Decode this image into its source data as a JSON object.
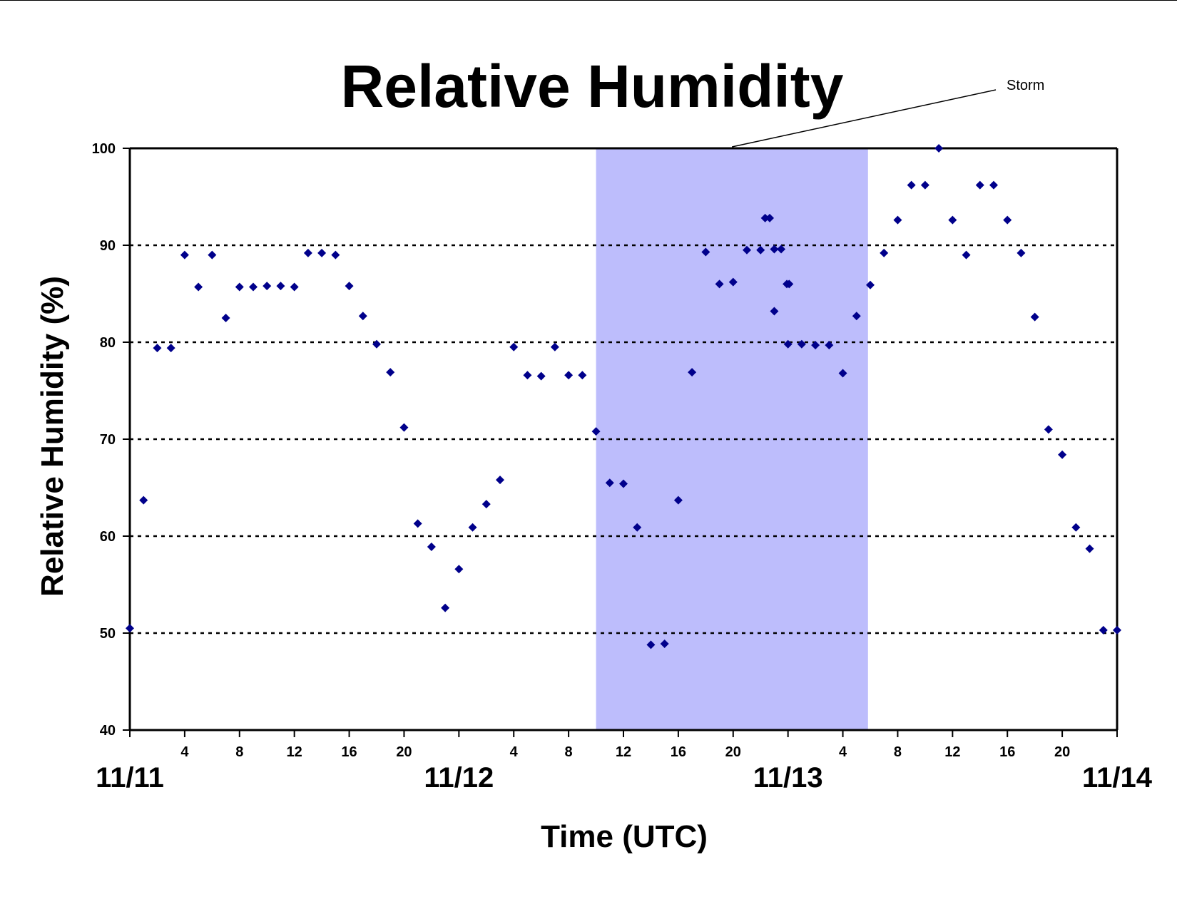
{
  "chart_data": {
    "type": "scatter",
    "title": "Relative Humidity",
    "xlabel": "Time (UTC)",
    "ylabel": "Relative Humidity (%)",
    "ylim": [
      40,
      100
    ],
    "yticks": [
      40,
      50,
      60,
      70,
      80,
      90,
      100
    ],
    "xlim": [
      "11/11 00:00",
      "11/14 00:00"
    ],
    "x_date_labels": [
      "11/11",
      "11/12",
      "11/13",
      "11/14"
    ],
    "x_hour_labels": [
      "4",
      "8",
      "12",
      "16",
      "20"
    ],
    "grid": "horizontal dotted at 50, 60, 70, 80, 90",
    "marker_color": "#00008B",
    "shaded_region": {
      "label": "Storm",
      "start": "11/12 10:00",
      "end": "11/13 05:50",
      "color": "#BDBDFC"
    },
    "series": [
      {
        "values": [
          [
            "11/11 00:00",
            50.5
          ],
          [
            "11/11 01:00",
            63.7
          ],
          [
            "11/11 02:00",
            79.4
          ],
          [
            "11/11 03:00",
            79.4
          ],
          [
            "11/11 04:00",
            89.0
          ],
          [
            "11/11 05:00",
            85.7
          ],
          [
            "11/11 06:00",
            89.0
          ],
          [
            "11/11 07:00",
            82.5
          ],
          [
            "11/11 08:00",
            85.7
          ],
          [
            "11/11 09:00",
            85.7
          ],
          [
            "11/11 10:00",
            85.8
          ],
          [
            "11/11 11:00",
            85.8
          ],
          [
            "11/11 12:00",
            85.7
          ],
          [
            "11/11 13:00",
            89.2
          ],
          [
            "11/11 14:00",
            89.2
          ],
          [
            "11/11 15:00",
            89.0
          ],
          [
            "11/11 16:00",
            85.8
          ],
          [
            "11/11 17:00",
            82.7
          ],
          [
            "11/11 18:00",
            79.8
          ],
          [
            "11/11 19:00",
            76.9
          ],
          [
            "11/11 20:00",
            71.2
          ],
          [
            "11/11 21:00",
            61.3
          ],
          [
            "11/11 22:00",
            58.9
          ],
          [
            "11/11 23:00",
            52.6
          ],
          [
            "11/12 00:00",
            56.6
          ],
          [
            "11/12 01:00",
            60.9
          ],
          [
            "11/12 02:00",
            63.3
          ],
          [
            "11/12 03:00",
            65.8
          ],
          [
            "11/12 04:00",
            79.5
          ],
          [
            "11/12 05:00",
            76.6
          ],
          [
            "11/12 06:00",
            76.5
          ],
          [
            "11/12 07:00",
            79.5
          ],
          [
            "11/12 08:00",
            76.6
          ],
          [
            "11/12 09:00",
            76.6
          ],
          [
            "11/12 10:00",
            70.8
          ],
          [
            "11/12 11:00",
            65.5
          ],
          [
            "11/12 12:00",
            65.4
          ],
          [
            "11/12 13:00",
            60.9
          ],
          [
            "11/12 14:00",
            48.8
          ],
          [
            "11/12 15:00",
            48.9
          ],
          [
            "11/12 16:00",
            63.7
          ],
          [
            "11/12 17:00",
            76.9
          ],
          [
            "11/12 18:00",
            89.3
          ],
          [
            "11/12 19:00",
            86.0
          ],
          [
            "11/12 20:00",
            86.2
          ],
          [
            "11/12 21:00",
            89.5
          ],
          [
            "11/12 22:00",
            89.5
          ],
          [
            "11/12 22:20",
            92.8
          ],
          [
            "11/12 22:40",
            92.8
          ],
          [
            "11/12 23:00",
            89.6
          ],
          [
            "11/12 23:00",
            83.2
          ],
          [
            "11/12 23:30",
            89.6
          ],
          [
            "11/12 23:55",
            86.0
          ],
          [
            "11/13 00:00",
            79.8
          ],
          [
            "11/13 00:05",
            86.0
          ],
          [
            "11/13 01:00",
            79.8
          ],
          [
            "11/13 02:00",
            79.7
          ],
          [
            "11/13 03:00",
            79.7
          ],
          [
            "11/13 04:00",
            76.8
          ],
          [
            "11/13 05:00",
            82.7
          ],
          [
            "11/13 06:00",
            85.9
          ],
          [
            "11/13 07:00",
            89.2
          ],
          [
            "11/13 08:00",
            92.6
          ],
          [
            "11/13 09:00",
            96.2
          ],
          [
            "11/13 10:00",
            96.2
          ],
          [
            "11/13 11:00",
            100.0
          ],
          [
            "11/13 12:00",
            92.6
          ],
          [
            "11/13 13:00",
            89.0
          ],
          [
            "11/13 14:00",
            96.2
          ],
          [
            "11/13 15:00",
            96.2
          ],
          [
            "11/13 16:00",
            92.6
          ],
          [
            "11/13 17:00",
            89.2
          ],
          [
            "11/13 18:00",
            82.6
          ],
          [
            "11/13 19:00",
            71.0
          ],
          [
            "11/13 20:00",
            68.4
          ],
          [
            "11/13 21:00",
            60.9
          ],
          [
            "11/13 22:00",
            58.7
          ],
          [
            "11/13 23:00",
            50.3
          ],
          [
            "11/14 00:00",
            50.3
          ]
        ]
      }
    ]
  }
}
